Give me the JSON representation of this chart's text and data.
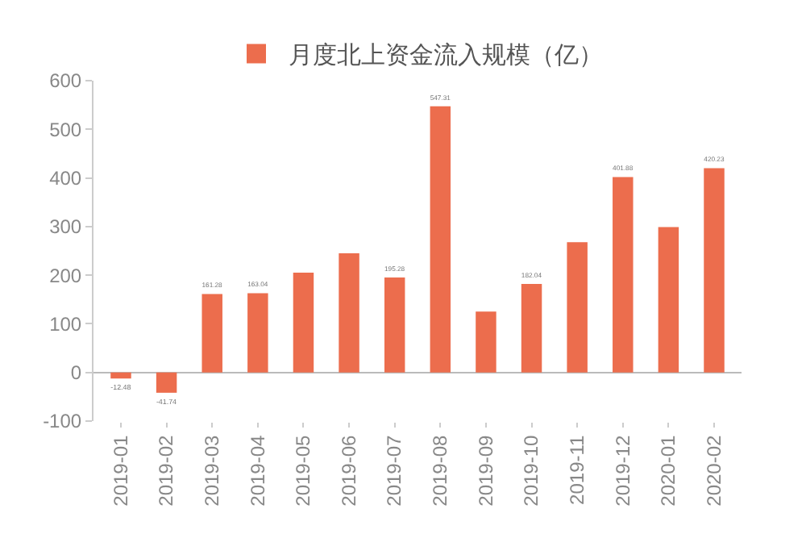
{
  "chart_data": {
    "type": "bar",
    "categories": [
      "2019-01",
      "2019-02",
      "2019-03",
      "2019-04",
      "2019-05",
      "2019-06",
      "2019-07",
      "2019-08",
      "2019-09",
      "2019-10",
      "2019-11",
      "2019-12",
      "2020-01",
      "2020-02"
    ],
    "series": [
      {
        "name": "月度北上资金流入规模（亿）",
        "color": "#ec6d4d",
        "values": [
          -12.48,
          -41.74,
          161.28,
          163.04,
          205,
          245,
          195.28,
          547.31,
          125,
          182.04,
          268,
          401.88,
          299,
          420.23
        ],
        "value_labels": [
          "-12.48",
          "-41.74",
          "161.28",
          "163.04",
          null,
          null,
          "195.28",
          "547.31",
          null,
          "182.04",
          null,
          "401.88",
          null,
          "420.23"
        ]
      }
    ],
    "ylim": [
      -100,
      600
    ],
    "yticks": [
      -100,
      0,
      100,
      200,
      300,
      400,
      500,
      600
    ],
    "legend": "top"
  }
}
